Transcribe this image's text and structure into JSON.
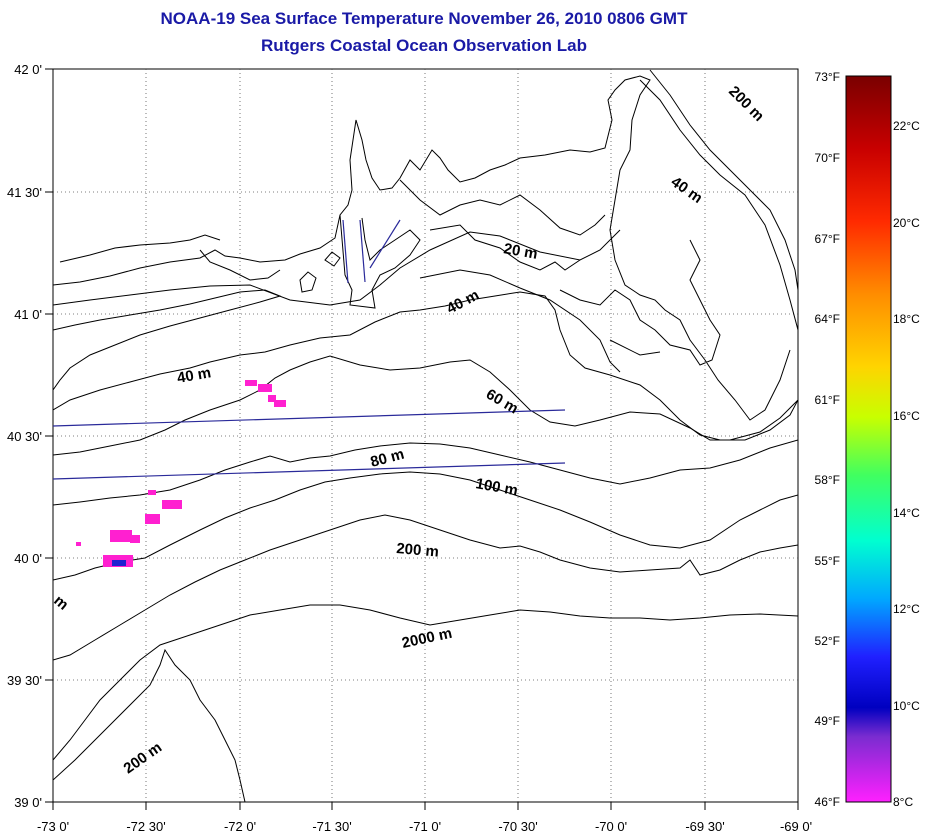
{
  "title": {
    "line1": "NOAA-19 Sea Surface Temperature November 26, 2010 0806 GMT",
    "line2": "Rutgers Coastal Ocean Observation Lab"
  },
  "map": {
    "lon_labels": [
      "-73 0'",
      "-72 30'",
      "-72 0'",
      "-71 30'",
      "-71 0'",
      "-70 30'",
      "-70 0'",
      "-69 30'",
      "-69 0'"
    ],
    "lat_labels": [
      "42 0'",
      "41 30'",
      "41 0'",
      "40 30'",
      "40 0'",
      "39 30'",
      "39 0'"
    ],
    "lon_range": [
      -73,
      -69
    ],
    "lat_range": [
      39,
      42
    ],
    "grid": "dotted",
    "bathymetry_labels": [
      "200 m",
      "40 m",
      "20 m",
      "40 m",
      "40 m",
      "60 m",
      "80 m",
      "100 m",
      "200 m",
      "2000 m",
      "200 m",
      "m"
    ]
  },
  "colorbar": {
    "fahrenheit_labels": [
      "73°F",
      "70°F",
      "67°F",
      "64°F",
      "61°F",
      "58°F",
      "55°F",
      "52°F",
      "49°F",
      "46°F"
    ],
    "celsius_labels": [
      "22°C",
      "20°C",
      "18°C",
      "16°C",
      "14°C",
      "12°C",
      "10°C",
      "8°C"
    ],
    "range_f": [
      46,
      73
    ],
    "range_c": [
      8,
      23
    ],
    "colors": [
      "#8b0000",
      "#ff0000",
      "#ff8c00",
      "#ffff00",
      "#00ff7f",
      "#00ffff",
      "#0000ff",
      "#800080",
      "#ff00ff"
    ]
  }
}
